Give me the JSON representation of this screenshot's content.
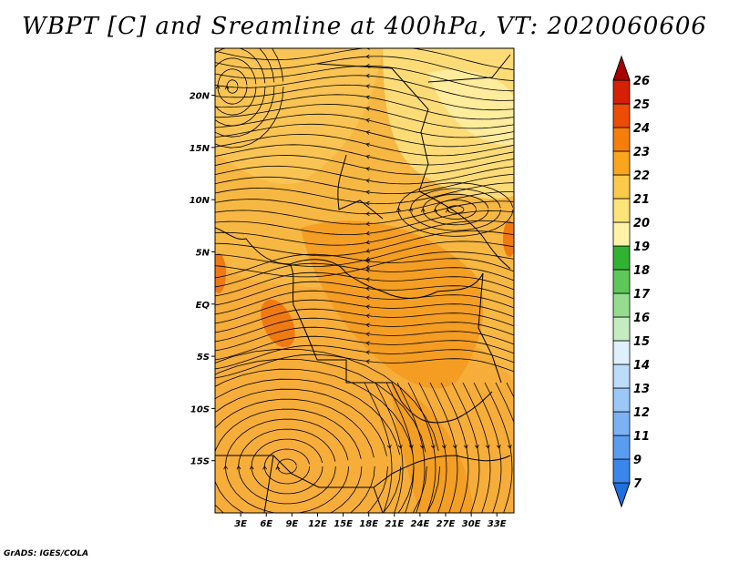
{
  "title": "WBPT [C] and Sreamline at 400hPa, VT: 2020060606",
  "credit": "GrADS: IGES/COLA",
  "map": {
    "lat_labels": [
      {
        "lat": 20,
        "label": "20N"
      },
      {
        "lat": 15,
        "label": "15N"
      },
      {
        "lat": 10,
        "label": "10N"
      },
      {
        "lat": 5,
        "label": "5N"
      },
      {
        "lat": 0,
        "label": "EQ"
      },
      {
        "lat": -5,
        "label": "5S"
      },
      {
        "lat": -10,
        "label": "10S"
      },
      {
        "lat": -15,
        "label": "15S"
      }
    ],
    "lon_labels": [
      {
        "lon": 3,
        "label": "3E"
      },
      {
        "lon": 6,
        "label": "6E"
      },
      {
        "lon": 9,
        "label": "9E"
      },
      {
        "lon": 12,
        "label": "12E"
      },
      {
        "lon": 15,
        "label": "15E"
      },
      {
        "lon": 18,
        "label": "18E"
      },
      {
        "lon": 21,
        "label": "21E"
      },
      {
        "lon": 24,
        "label": "24E"
      },
      {
        "lon": 27,
        "label": "27E"
      },
      {
        "lon": 30,
        "label": "30E"
      },
      {
        "lon": 33,
        "label": "33E"
      }
    ],
    "lat_range": [
      -20,
      24.5
    ],
    "lon_range": [
      0,
      35
    ]
  },
  "colorbar": {
    "levels": [
      "7",
      "9",
      "11",
      "12",
      "13",
      "14",
      "15",
      "16",
      "17",
      "18",
      "19",
      "20",
      "21",
      "22",
      "23",
      "24",
      "25",
      "26"
    ],
    "colors": [
      "#1e6fe0",
      "#3a86ea",
      "#5a9df0",
      "#7ab2f4",
      "#9cc8f8",
      "#bcdcfb",
      "#dff0fd",
      "#c4ecc0",
      "#96dc8e",
      "#5ec75a",
      "#32b232",
      "#fff3a8",
      "#fde47a",
      "#fbc94c",
      "#f9a51d",
      "#f57e0a",
      "#ec4c06",
      "#d52005",
      "#a80000"
    ]
  }
}
